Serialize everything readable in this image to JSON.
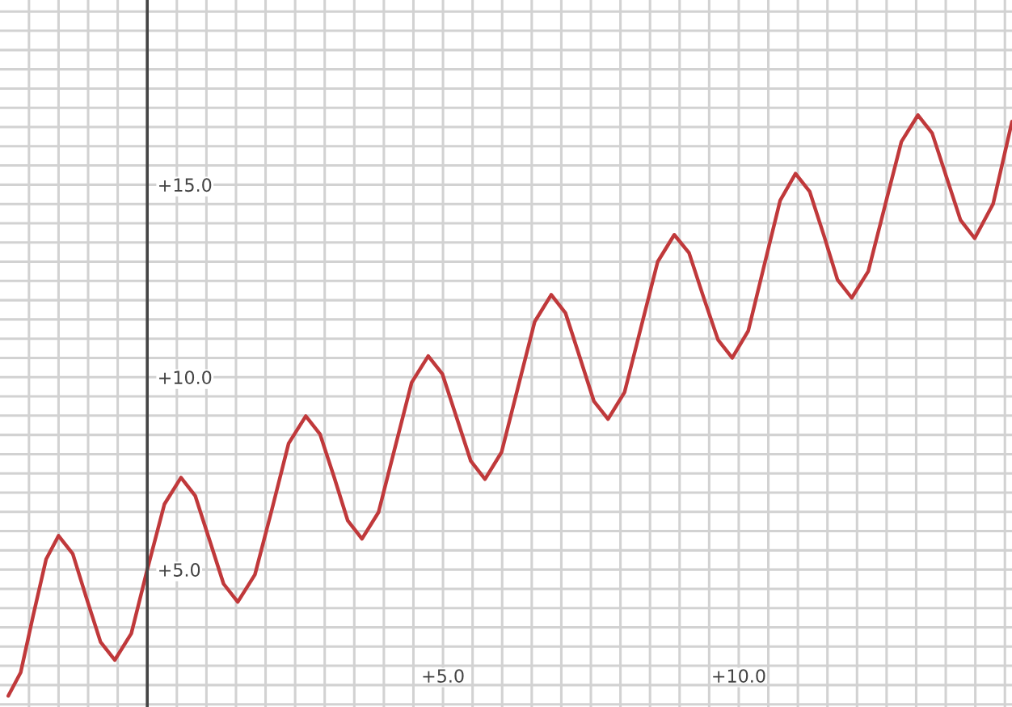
{
  "chart_data": {
    "type": "line",
    "xlim": [
      -2.49,
      14.62
    ],
    "ylim": [
      1.43,
      19.8
    ],
    "xticks": [
      {
        "value": -2.0,
        "label": null
      },
      {
        "value": -1.5,
        "label": null
      },
      {
        "value": -1.0,
        "label": null
      },
      {
        "value": -0.5,
        "label": null
      },
      {
        "value": 0.0,
        "label": null
      },
      {
        "value": 0.5,
        "label": null
      },
      {
        "value": 1.0,
        "label": null
      },
      {
        "value": 1.5,
        "label": null
      },
      {
        "value": 2.0,
        "label": null
      },
      {
        "value": 2.5,
        "label": null
      },
      {
        "value": 3.0,
        "label": null
      },
      {
        "value": 3.5,
        "label": null
      },
      {
        "value": 4.0,
        "label": null
      },
      {
        "value": 4.5,
        "label": null
      },
      {
        "value": 5.0,
        "label": "+5.0"
      },
      {
        "value": 5.5,
        "label": null
      },
      {
        "value": 6.0,
        "label": null
      },
      {
        "value": 6.5,
        "label": null
      },
      {
        "value": 7.0,
        "label": null
      },
      {
        "value": 7.5,
        "label": null
      },
      {
        "value": 8.0,
        "label": null
      },
      {
        "value": 8.5,
        "label": null
      },
      {
        "value": 9.0,
        "label": null
      },
      {
        "value": 9.5,
        "label": null
      },
      {
        "value": 10.0,
        "label": "+10.0"
      },
      {
        "value": 10.5,
        "label": null
      },
      {
        "value": 11.0,
        "label": null
      },
      {
        "value": 11.5,
        "label": null
      },
      {
        "value": 12.0,
        "label": null
      },
      {
        "value": 12.5,
        "label": null
      },
      {
        "value": 13.0,
        "label": null
      },
      {
        "value": 13.5,
        "label": null
      },
      {
        "value": 14.0,
        "label": null
      },
      {
        "value": 14.5,
        "label": null
      }
    ],
    "yticks": [
      {
        "value": 1.5,
        "label": null
      },
      {
        "value": 2.0,
        "label": null
      },
      {
        "value": 2.5,
        "label": null
      },
      {
        "value": 3.0,
        "label": null
      },
      {
        "value": 3.5,
        "label": null
      },
      {
        "value": 4.0,
        "label": null
      },
      {
        "value": 4.5,
        "label": null
      },
      {
        "value": 5.0,
        "label": "+5.0"
      },
      {
        "value": 5.5,
        "label": null
      },
      {
        "value": 6.0,
        "label": null
      },
      {
        "value": 6.5,
        "label": null
      },
      {
        "value": 7.0,
        "label": null
      },
      {
        "value": 7.5,
        "label": null
      },
      {
        "value": 8.0,
        "label": null
      },
      {
        "value": 8.5,
        "label": null
      },
      {
        "value": 9.0,
        "label": null
      },
      {
        "value": 9.5,
        "label": null
      },
      {
        "value": 10.0,
        "label": "+10.0"
      },
      {
        "value": 10.5,
        "label": null
      },
      {
        "value": 11.0,
        "label": null
      },
      {
        "value": 11.5,
        "label": null
      },
      {
        "value": 12.0,
        "label": null
      },
      {
        "value": 12.5,
        "label": null
      },
      {
        "value": 13.0,
        "label": null
      },
      {
        "value": 13.5,
        "label": null
      },
      {
        "value": 14.0,
        "label": null
      },
      {
        "value": 14.5,
        "label": null
      },
      {
        "value": 15.0,
        "label": "+15.0"
      },
      {
        "value": 15.5,
        "label": null
      },
      {
        "value": 16.0,
        "label": null
      },
      {
        "value": 16.5,
        "label": null
      },
      {
        "value": 17.0,
        "label": null
      },
      {
        "value": 17.5,
        "label": null
      },
      {
        "value": 18.0,
        "label": null
      },
      {
        "value": 18.5,
        "label": null
      },
      {
        "value": 19.0,
        "label": null
      },
      {
        "value": 19.5,
        "label": null
      }
    ],
    "grid": true,
    "marker": "none",
    "line_style": "solid",
    "x": [
      -2.35,
      -2.14,
      -1.93,
      -1.71,
      -1.5,
      -1.26,
      -1.03,
      -0.79,
      -0.55,
      -0.27,
      0.0,
      0.29,
      0.57,
      0.81,
      1.05,
      1.29,
      1.53,
      1.82,
      2.11,
      2.39,
      2.68,
      2.92,
      3.16,
      3.39,
      3.63,
      3.91,
      4.19,
      4.47,
      4.75,
      4.99,
      5.23,
      5.47,
      5.71,
      5.99,
      6.27,
      6.55,
      6.83,
      7.07,
      7.31,
      7.55,
      7.79,
      8.07,
      8.35,
      8.63,
      8.91,
      9.16,
      9.4,
      9.65,
      9.89,
      10.16,
      10.43,
      10.7,
      10.96,
      11.2,
      11.44,
      11.67,
      11.91,
      12.19,
      12.47,
      12.75,
      13.03,
      13.27,
      13.51,
      13.75,
      13.99,
      14.3,
      14.62
    ],
    "series": [
      {
        "color": "#c0393b",
        "values": [
          1.72,
          2.33,
          3.8,
          5.27,
          5.88,
          5.41,
          4.27,
          3.12,
          2.65,
          3.34,
          5.0,
          6.7,
          7.39,
          6.92,
          5.78,
          4.63,
          4.16,
          4.87,
          6.58,
          8.28,
          8.99,
          8.52,
          7.4,
          6.27,
          5.8,
          6.49,
          8.18,
          9.86,
          10.55,
          10.08,
          8.95,
          7.82,
          7.35,
          8.05,
          9.75,
          11.44,
          12.14,
          11.67,
          10.53,
          9.38,
          8.91,
          9.61,
          11.31,
          13.0,
          13.7,
          13.23,
          12.1,
          10.97,
          10.5,
          11.2,
          12.9,
          14.59,
          15.29,
          14.82,
          13.68,
          12.53,
          12.06,
          12.75,
          14.44,
          16.12,
          16.81,
          16.34,
          15.21,
          14.08,
          13.61,
          14.5,
          16.64
        ]
      }
    ]
  }
}
